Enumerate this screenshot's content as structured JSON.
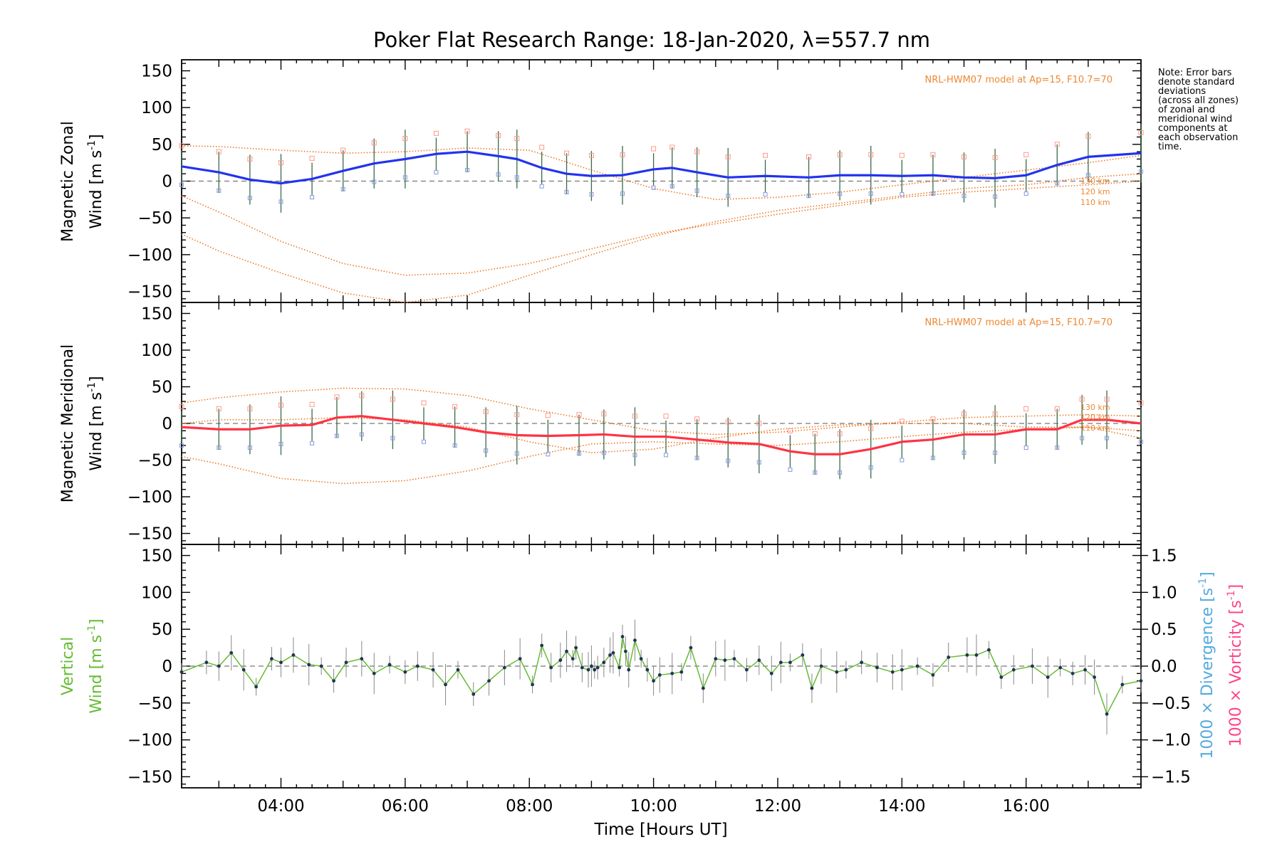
{
  "title": "Poker Flat Research Range: 18-Jan-2020, λ=557.7 nm",
  "xlabel": "Time [Hours UT]",
  "x_tick_labels": [
    "04:00",
    "06:00",
    "08:00",
    "10:00",
    "12:00",
    "14:00",
    "16:00"
  ],
  "y_tick_labels": [
    "150",
    "100",
    "50",
    "0",
    "−50",
    "−100",
    "−150"
  ],
  "right_tick_labels": [
    "1.5",
    "1.0",
    "0.5",
    "0.0",
    "−0.5",
    "−1.0",
    "−1.5"
  ],
  "note_lines": [
    "Note: Error bars",
    "denote standard",
    "deviations",
    "(across all zones)",
    "of zonal and",
    "meridional wind",
    "components at",
    "each observation",
    "time."
  ],
  "model_note": "NRL-HWM07 model at Ap=15, F10.7=70",
  "altitude_labels": [
    "130 km",
    "120 km",
    "110 km"
  ],
  "zonal_ylabel": {
    "line1": "Magnetic Zonal",
    "line2": "Wind",
    "unit": "[m s",
    "exp": "-1",
    "close": "]"
  },
  "meridional_ylabel": {
    "line1": "Magnetic Meridional",
    "line2": "Wind",
    "unit": "[m s",
    "exp": "-1",
    "close": "]"
  },
  "vertical_ylabel": {
    "line1": "Vertical",
    "line2": "Wind",
    "unit": "[m s",
    "exp": "-1",
    "close": "]"
  },
  "right_ylabel_div": {
    "prefix": "1000 × Divergence",
    "unit": "[s",
    "exp": "-1",
    "close": "]"
  },
  "right_ylabel_vort": {
    "prefix": "1000 × Vorticity",
    "unit": "[s",
    "exp": "-1",
    "close": "]"
  },
  "colors": {
    "zonal_line": "#2233ee",
    "meridional_line": "#ff3344",
    "vertical_line": "#66bb33",
    "vertical_points": "#223355",
    "model": "#ee7722",
    "divergence": "#55aadd",
    "vorticity": "#ff4488",
    "zone_markers": "#8899dd",
    "error_bars": "#3a6a4a",
    "pink_markers": "#ff9988"
  },
  "chart_data": [
    {
      "type": "line",
      "panel": "zonal",
      "xlim": [
        2.4,
        17.85
      ],
      "ylim": [
        -165,
        165
      ],
      "mean_wind": {
        "x": [
          2.4,
          3.0,
          3.5,
          4.0,
          4.5,
          5.0,
          5.5,
          6.0,
          6.5,
          7.0,
          7.5,
          7.8,
          8.2,
          8.6,
          9.0,
          9.5,
          10.0,
          10.3,
          10.7,
          11.2,
          11.8,
          12.5,
          13.0,
          13.5,
          14.0,
          14.5,
          15.0,
          15.5,
          16.0,
          16.5,
          17.0,
          17.85
        ],
        "y": [
          20,
          12,
          2,
          -3,
          3,
          14,
          24,
          30,
          37,
          40,
          34,
          30,
          18,
          10,
          7,
          8,
          16,
          18,
          12,
          5,
          7,
          5,
          8,
          8,
          7,
          8,
          5,
          4,
          8,
          22,
          33,
          38
        ]
      },
      "model_winds": {
        "110 km": {
          "x": [
            2.4,
            3.0,
            4.0,
            5.0,
            6.0,
            7.0,
            8.0,
            9.0,
            10.0,
            11.0,
            12.0,
            13.0,
            14.0,
            15.0,
            16.0,
            17.0,
            17.85
          ],
          "y": [
            -72,
            -95,
            -125,
            -152,
            -165,
            -155,
            -128,
            -100,
            -75,
            -55,
            -40,
            -30,
            -20,
            -10,
            -5,
            5,
            10
          ]
        },
        "120 km": {
          "x": [
            2.4,
            3.0,
            4.0,
            5.0,
            6.0,
            7.0,
            8.0,
            9.0,
            10.0,
            11.0,
            12.0,
            13.0,
            14.0,
            15.0,
            16.0,
            17.0,
            17.85
          ],
          "y": [
            -20,
            -42,
            -82,
            -112,
            -128,
            -125,
            -112,
            -92,
            -72,
            -58,
            -45,
            -33,
            -22,
            -15,
            -10,
            -5,
            0
          ]
        },
        "130 km": {
          "x": [
            2.4,
            3.0,
            4.0,
            5.0,
            6.0,
            7.0,
            8.0,
            9.0,
            10.0,
            11.0,
            12.0,
            13.0,
            14.0,
            15.0,
            16.0,
            17.0,
            17.85
          ],
          "y": [
            48,
            47,
            42,
            38,
            40,
            45,
            42,
            15,
            -10,
            -25,
            -22,
            -15,
            -5,
            5,
            15,
            25,
            35
          ]
        }
      }
    },
    {
      "type": "line",
      "panel": "meridional",
      "xlim": [
        2.4,
        17.85
      ],
      "ylim": [
        -165,
        165
      ],
      "mean_wind": {
        "x": [
          2.4,
          3.0,
          3.5,
          4.0,
          4.5,
          4.9,
          5.3,
          5.8,
          6.3,
          6.8,
          7.3,
          7.8,
          8.3,
          8.8,
          9.2,
          9.7,
          10.2,
          10.7,
          11.2,
          11.7,
          12.2,
          12.6,
          13.0,
          13.5,
          14.0,
          14.5,
          15.0,
          15.5,
          16.0,
          16.5,
          16.9,
          17.3,
          17.85
        ],
        "y": [
          -5,
          -8,
          -8,
          -3,
          -2,
          8,
          10,
          5,
          0,
          -5,
          -12,
          -16,
          -17,
          -16,
          -15,
          -18,
          -18,
          -22,
          -26,
          -28,
          -38,
          -42,
          -42,
          -35,
          -25,
          -22,
          -15,
          -15,
          -8,
          -8,
          5,
          5,
          0
        ]
      },
      "model_winds": {
        "110 km": {
          "x": [
            2.4,
            3.0,
            4.0,
            5.0,
            6.0,
            7.0,
            8.0,
            9.0,
            10.0,
            11.0,
            12.0,
            13.0,
            14.0,
            15.0,
            16.0,
            17.0,
            17.85
          ],
          "y": [
            -45,
            -55,
            -75,
            -82,
            -78,
            -65,
            -45,
            -28,
            -25,
            -28,
            -30,
            -25,
            -18,
            -12,
            -8,
            -5,
            -20
          ]
        },
        "120 km": {
          "x": [
            2.4,
            3.0,
            4.0,
            5.0,
            6.0,
            7.0,
            8.0,
            9.0,
            10.0,
            11.0,
            12.0,
            13.0,
            14.0,
            15.0,
            16.0,
            17.0,
            17.85
          ],
          "y": [
            0,
            5,
            5,
            8,
            5,
            -5,
            -25,
            -40,
            -35,
            -20,
            -8,
            -2,
            0,
            0,
            -5,
            -5,
            -10
          ]
        },
        "130 km": {
          "x": [
            2.4,
            3.0,
            4.0,
            5.0,
            6.0,
            7.0,
            8.0,
            9.0,
            10.0,
            11.0,
            12.0,
            13.0,
            14.0,
            15.0,
            16.0,
            17.0,
            17.85
          ],
          "y": [
            28,
            35,
            43,
            48,
            47,
            38,
            20,
            5,
            -10,
            -15,
            -12,
            -5,
            2,
            8,
            10,
            12,
            10
          ]
        }
      }
    },
    {
      "type": "line",
      "panel": "vertical",
      "xlim": [
        2.4,
        17.85
      ],
      "ylim": [
        -165,
        165
      ],
      "y2lim": [
        -1.65,
        1.65
      ],
      "vertical_wind": {
        "x": [
          2.4,
          2.8,
          3.0,
          3.2,
          3.4,
          3.6,
          3.85,
          4.0,
          4.2,
          4.45,
          4.65,
          4.85,
          5.05,
          5.3,
          5.5,
          5.75,
          6.0,
          6.2,
          6.45,
          6.65,
          6.85,
          7.1,
          7.35,
          7.6,
          7.85,
          8.05,
          8.2,
          8.35,
          8.5,
          8.6,
          8.7,
          8.75,
          8.85,
          8.95,
          9.0,
          9.05,
          9.1,
          9.2,
          9.3,
          9.35,
          9.45,
          9.5,
          9.55,
          9.6,
          9.7,
          9.8,
          9.9,
          10.0,
          10.1,
          10.3,
          10.45,
          10.6,
          10.8,
          11.0,
          11.15,
          11.3,
          11.5,
          11.7,
          11.9,
          12.05,
          12.2,
          12.4,
          12.55,
          12.7,
          12.95,
          13.1,
          13.35,
          13.6,
          13.85,
          14.0,
          14.25,
          14.5,
          14.75,
          15.05,
          15.2,
          15.4,
          15.6,
          15.8,
          16.1,
          16.35,
          16.55,
          16.75,
          16.95,
          17.1,
          17.3,
          17.55,
          17.85
        ],
        "y": [
          -8,
          5,
          0,
          18,
          -5,
          -28,
          10,
          5,
          15,
          2,
          0,
          -20,
          5,
          10,
          -10,
          2,
          -8,
          0,
          -5,
          -25,
          -5,
          -38,
          -20,
          -2,
          10,
          -25,
          28,
          -2,
          8,
          20,
          10,
          25,
          -2,
          -5,
          0,
          -5,
          -2,
          5,
          15,
          18,
          -2,
          40,
          20,
          -5,
          35,
          10,
          -5,
          -20,
          -12,
          -10,
          -8,
          25,
          -30,
          10,
          8,
          10,
          -5,
          8,
          -10,
          5,
          5,
          15,
          -30,
          0,
          -8,
          -5,
          5,
          -2,
          -8,
          -5,
          0,
          -12,
          12,
          15,
          15,
          22,
          -15,
          -5,
          0,
          -15,
          -2,
          -10,
          -5,
          -15,
          -65,
          -25,
          -20
        ]
      },
      "series": [
        {
          "name": "Vertical Wind",
          "color": "#66bb33"
        }
      ]
    }
  ]
}
